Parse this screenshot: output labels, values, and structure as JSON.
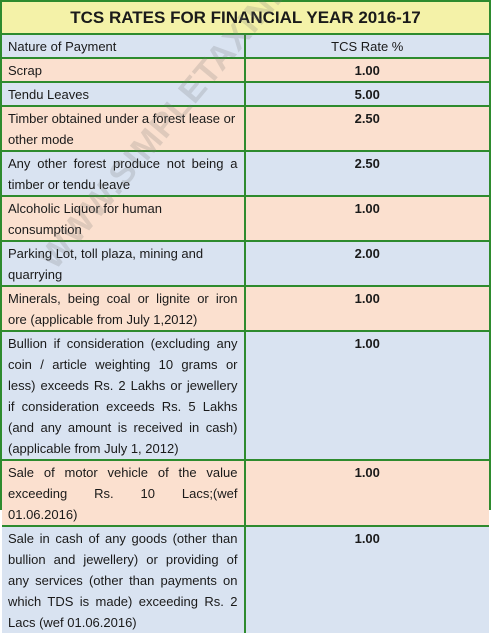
{
  "title": "TCS RATES FOR FINANCIAL YEAR 2016-17",
  "columns": {
    "nature": "Nature of Payment",
    "rate": "TCS Rate %"
  },
  "rows": [
    {
      "nature": "Scrap",
      "rate": "1.00"
    },
    {
      "nature": "Tendu Leaves",
      "rate": "5.00"
    },
    {
      "nature": "Timber obtained under a forest lease or other mode",
      "rate": "2.50"
    },
    {
      "nature": "Any other forest produce not being a timber or tendu leave",
      "rate": "2.50"
    },
    {
      "nature": "Alcoholic Liquor for human consumption",
      "rate": "1.00"
    },
    {
      "nature": "Parking Lot, toll plaza, mining and quarrying",
      "rate": "2.00"
    },
    {
      "nature": "Minerals, being coal or lignite or iron ore (applicable from July 1,2012)",
      "rate": "1.00"
    },
    {
      "nature": "Bullion if consideration (excluding any coin / article weighting 10 grams or less) exceeds Rs. 2 Lakhs or jewellery if consideration exceeds Rs. 5 Lakhs (and any amount is received in cash) (applicable from July 1, 2012)",
      "rate": "1.00"
    },
    {
      "nature": "Sale of motor vehicle of the value exceeding Rs. 10 Lacs;(wef 01.06.2016)",
      "rate": "1.00"
    },
    {
      "nature": "Sale in cash of any goods (other than bullion and jewellery) or providing of any services (other than payments on which TDS is made) exceeding Rs. 2 Lacs (wef 01.06.2016)",
      "rate": "1.00"
    }
  ],
  "watermark": "WWW.SIMPLETAXINDIA.NET",
  "colors": {
    "border": "#2e8b2e",
    "title_bg": "#f4f2a8",
    "row_peach": "#fbe0cf",
    "row_blue": "#d9e3f1"
  }
}
